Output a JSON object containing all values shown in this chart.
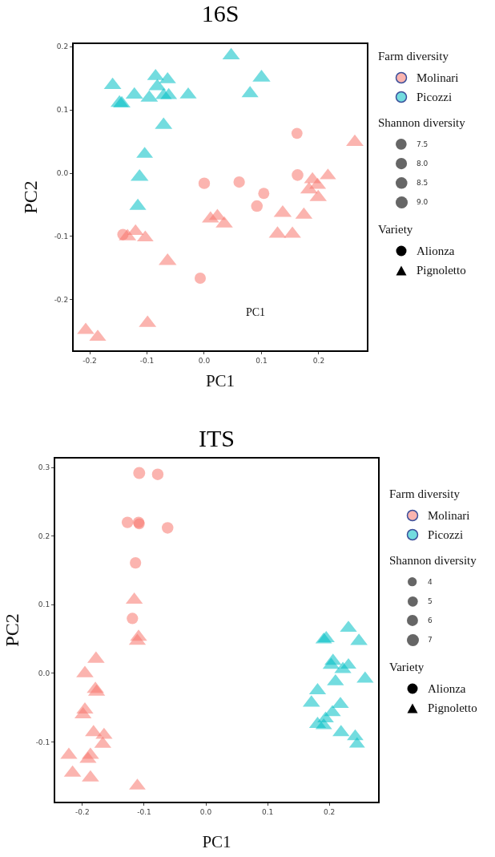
{
  "chart_data": [
    {
      "type": "bubble",
      "title": "16S",
      "xlabel": "PC1",
      "ylabel": "PC2",
      "legend_title": "Farm diversity",
      "legend": "right",
      "xlim": [
        -0.228,
        0.284
      ],
      "ylim": [
        -0.28,
        0.204
      ],
      "xticks": [
        -0.2,
        -0.1,
        {
          "value": 0,
          "label": "0.0"
        },
        0.1,
        0.2
      ],
      "yticks": [
        -0.2,
        -0.1,
        {
          "value": 0,
          "label": "0.0"
        },
        0.1,
        0.2
      ],
      "size_legend": [
        7.5,
        {
          "value": 8,
          "label": "8.0"
        },
        8.5,
        {
          "value": 9,
          "label": "9.0"
        }
      ],
      "annotations": [
        "Shannon diversity",
        "Variety",
        "Alionza",
        "Pignoletto",
        "PC1"
      ],
      "series": [
        {
          "color": "#f8766d",
          "marker": "circle",
          "x": [
            0.162,
            0.163,
            0.0,
            0.061,
            0.104,
            0.092,
            -0.142,
            -0.007
          ],
          "values": [
            0.063,
            -0.003,
            -0.016,
            -0.014,
            -0.032,
            -0.052,
            -0.097,
            -0.166
          ],
          "sizes": [
            7.6,
            8.5,
            8.3,
            8.2,
            7.7,
            8.5,
            8.0,
            7.9
          ]
        },
        {
          "name": "Molinari",
          "color": "#f8766d",
          "marker": "triangle",
          "x": [
            0.263,
            0.216,
            0.189,
            0.198,
            0.183,
            0.199,
            0.137,
            0.174,
            0.128,
            0.154,
            0.011,
            0.023,
            0.035,
            -0.134,
            -0.12,
            -0.103,
            -0.064,
            -0.099,
            -0.207,
            -0.186
          ],
          "values": [
            0.049,
            -0.004,
            -0.01,
            -0.019,
            -0.026,
            -0.038,
            -0.063,
            -0.066,
            -0.096,
            -0.096,
            -0.072,
            -0.068,
            -0.08,
            -0.1,
            -0.092,
            -0.102,
            -0.139,
            -0.237,
            -0.248,
            -0.259
          ],
          "sizes": [
            8.5,
            7.5,
            8.0,
            8.0,
            8.5,
            8.3,
            9.0,
            8.2,
            8.5,
            8.2,
            8.3,
            8.0,
            8.3,
            8.5,
            7.5,
            7.7,
            9.0,
            8.5,
            8.3,
            8.0
          ]
        },
        {
          "name": "Picozzi",
          "color": "#00bfc4",
          "marker": "triangle",
          "x": [
            -0.16,
            -0.148,
            -0.144,
            -0.122,
            -0.085,
            -0.064,
            -0.082,
            -0.096,
            -0.071,
            -0.062,
            -0.028,
            -0.071,
            0.047,
            0.1,
            0.08,
            -0.104,
            -0.113,
            -0.116
          ],
          "values": [
            0.139,
            0.111,
            0.11,
            0.124,
            0.153,
            0.148,
            0.137,
            0.119,
            0.123,
            0.123,
            0.124,
            0.076,
            0.186,
            0.151,
            0.126,
            0.03,
            -0.006,
            -0.052
          ],
          "sizes": [
            8.5,
            9.0,
            8.5,
            8.5,
            8.0,
            8.0,
            8.5,
            8.5,
            7.5,
            7.8,
            8.0,
            8.5,
            8.5,
            9.0,
            8.0,
            7.8,
            9.0,
            8.0
          ]
        }
      ]
    },
    {
      "type": "bubble",
      "title": "ITS",
      "xlabel": "PC1",
      "ylabel": "PC2",
      "legend_title": "Farm diversity",
      "legend": "right",
      "xlim": [
        -0.244,
        0.279
      ],
      "ylim": [
        -0.187,
        0.313
      ],
      "xticks": [
        -0.2,
        -0.1,
        {
          "value": 0,
          "label": "0.0"
        },
        0.1,
        0.2
      ],
      "yticks": [
        -0.1,
        {
          "value": 0,
          "label": "0.0"
        },
        0.1,
        0.2,
        0.3
      ],
      "size_legend": [
        4,
        5,
        6,
        7
      ],
      "annotations": [
        "Shannon diversity",
        "Variety",
        "Alionza",
        "Pignoletto"
      ],
      "series": [
        {
          "color": "#f8766d",
          "marker": "circle",
          "x": [
            -0.108,
            -0.078,
            -0.127,
            -0.109,
            -0.108,
            -0.062,
            -0.114,
            -0.119
          ],
          "values": [
            0.292,
            0.29,
            0.22,
            0.22,
            0.218,
            0.212,
            0.161,
            0.08
          ],
          "sizes": [
            7.0,
            6.5,
            6.5,
            6.5,
            6.0,
            6.5,
            6.3,
            6.3
          ]
        },
        {
          "name": "Molinari",
          "color": "#f8766d",
          "marker": "triangle",
          "x": [
            -0.116,
            -0.109,
            -0.111,
            -0.178,
            -0.196,
            -0.179,
            -0.177,
            -0.196,
            -0.199,
            -0.182,
            -0.165,
            -0.167,
            -0.222,
            -0.187,
            -0.191,
            -0.216,
            -0.187,
            -0.111
          ],
          "values": [
            0.107,
            0.053,
            0.047,
            0.021,
            0.0,
            -0.023,
            -0.027,
            -0.053,
            -0.06,
            -0.086,
            -0.09,
            -0.103,
            -0.119,
            -0.119,
            -0.125,
            -0.145,
            -0.152,
            -0.164
          ],
          "sizes": [
            6.3,
            6.3,
            6.3,
            6.5,
            6.5,
            6.5,
            6.3,
            6.3,
            6.3,
            6.3,
            6.3,
            6.3,
            6.3,
            6.5,
            6.3,
            6.5,
            6.5,
            6.0
          ]
        },
        {
          "name": "Picozzi",
          "color": "#00bfc4",
          "marker": "triangle",
          "x": [
            0.231,
            0.195,
            0.191,
            0.248,
            0.206,
            0.203,
            0.231,
            0.222,
            0.258,
            0.21,
            0.181,
            0.171,
            0.218,
            0.205,
            0.194,
            0.181,
            0.191,
            0.219,
            0.242,
            0.245
          ],
          "values": [
            0.066,
            0.051,
            0.049,
            0.047,
            0.018,
            0.012,
            0.012,
            0.006,
            -0.008,
            -0.012,
            -0.025,
            -0.043,
            -0.045,
            -0.057,
            -0.066,
            -0.074,
            -0.076,
            -0.086,
            -0.092,
            -0.103
          ],
          "sizes": [
            6.3,
            6.3,
            6.0,
            6.5,
            6.3,
            6.3,
            5.5,
            6.3,
            6.3,
            6.3,
            6.3,
            6.5,
            6.3,
            6.3,
            6.0,
            6.3,
            6.0,
            6.3,
            6.0,
            5.5
          ]
        }
      ]
    }
  ]
}
